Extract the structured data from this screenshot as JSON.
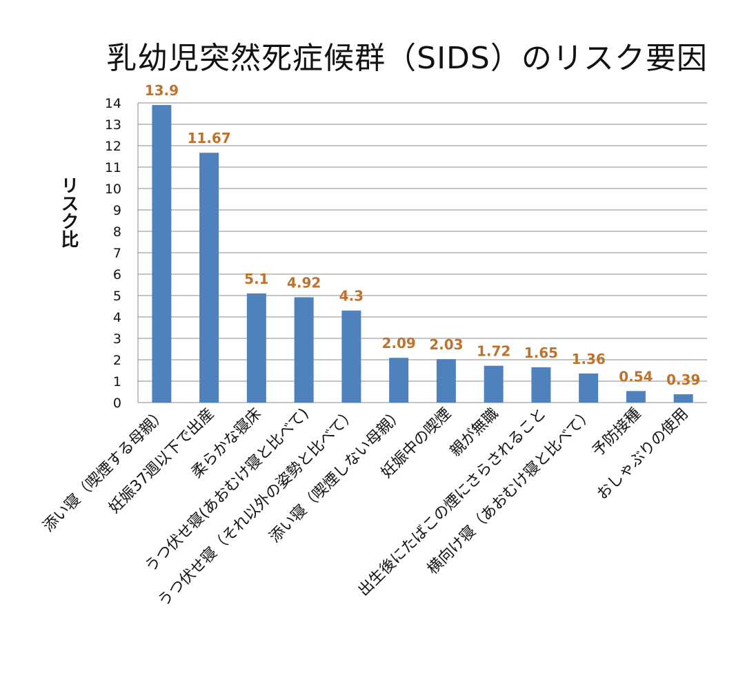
{
  "chart_data": {
    "type": "bar",
    "title": "乳幼児突然死症候群（SIDS）のリスク要因",
    "xlabel": "",
    "ylabel": "リスク比",
    "ylim": [
      0,
      14
    ],
    "yticks": [
      0,
      1,
      2,
      3,
      4,
      5,
      6,
      7,
      8,
      9,
      10,
      11,
      12,
      13,
      14
    ],
    "grid": true,
    "bar_color": "#4F81BD",
    "label_color": "#C0712A",
    "categories": [
      "添い寝（喫煙する母親）",
      "妊娠37週以下で出産",
      "柔らかな寝床",
      "うつ伏せ寝(あおむけ寝と比べて)",
      "うつ伏せ寝（それ以外の姿勢と比べて）",
      "添い寝（喫煙しない母親）",
      "妊娠中の喫煙",
      "親が無職",
      "出生後にたばこの煙にさらされること",
      "横向け寝（あおむけ寝と比べて）",
      "予防接種",
      "おしゃぶりの使用"
    ],
    "values": [
      13.9,
      11.67,
      5.1,
      4.92,
      4.3,
      2.09,
      2.03,
      1.72,
      1.65,
      1.36,
      0.54,
      0.39
    ]
  }
}
